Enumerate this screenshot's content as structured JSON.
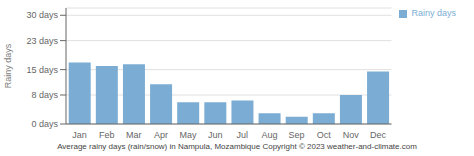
{
  "chart_data": {
    "type": "bar",
    "categories": [
      "Jan",
      "Feb",
      "Mar",
      "Apr",
      "May",
      "Jun",
      "Jul",
      "Aug",
      "Sep",
      "Oct",
      "Nov",
      "Dec"
    ],
    "series": [
      {
        "name": "Rainy days",
        "color": "#7badd4",
        "values": [
          17,
          16,
          16.5,
          11,
          6,
          6,
          6.5,
          3,
          2,
          3,
          8,
          14.5
        ]
      }
    ],
    "ylabel": "Rainy days",
    "ylim": [
      0,
      32
    ],
    "yticks": [
      {
        "value": 0,
        "label": "0 days"
      },
      {
        "value": 8,
        "label": "8 days"
      },
      {
        "value": 15,
        "label": "15 days"
      },
      {
        "value": 23,
        "label": "23 days"
      },
      {
        "value": 30,
        "label": "30 days"
      }
    ],
    "grid": true,
    "legend": "right",
    "caption": "Average rainy days (rain/snow) in Nampula, Mozambique   Copyright © 2023  weather-and-climate.com"
  }
}
